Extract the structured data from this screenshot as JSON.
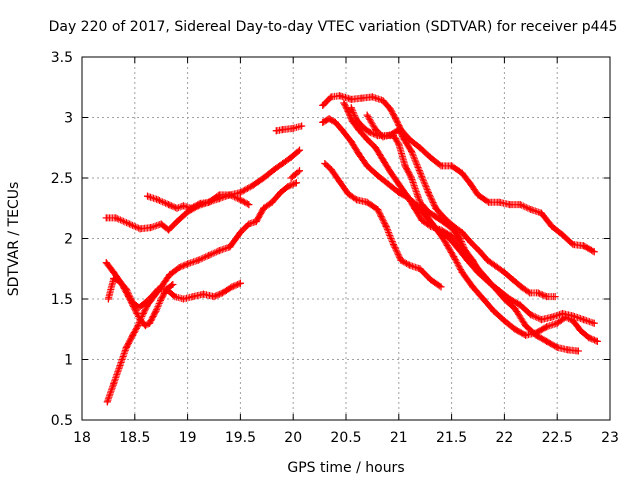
{
  "chart_data": {
    "type": "scatter",
    "title": "Day 220 of 2017, Sidereal Day-to-day VTEC variation (SDTVAR) for receiver p445",
    "xlabel": "GPS time / hours",
    "ylabel": "SDTVAR / TECUs",
    "xlim": [
      18,
      23
    ],
    "ylim": [
      0.5,
      3.5
    ],
    "grid": true,
    "legend": "none",
    "marker": "plus",
    "x_ticks": [
      18,
      18.5,
      19,
      19.5,
      20,
      20.5,
      21,
      21.5,
      22,
      22.5,
      23
    ],
    "x_tick_labels": [
      "18",
      "18.5",
      "19",
      "19.5",
      "20",
      "20.5",
      "21",
      "21.5",
      "22",
      "22.5",
      "23"
    ],
    "y_ticks": [
      0.5,
      1,
      1.5,
      2,
      2.5,
      3,
      3.5
    ],
    "y_tick_labels": [
      "0.5",
      "1",
      "1.5",
      "2",
      "2.5",
      "3",
      "3.5"
    ],
    "colors": {
      "marker": "#ff0000",
      "grid": "#a0a0a0",
      "axis": "#000000"
    },
    "series": [
      {
        "name": "trace-1",
        "points": [
          [
            18.23,
            2.17
          ],
          [
            18.32,
            2.17
          ],
          [
            18.45,
            2.12
          ],
          [
            18.55,
            2.08
          ],
          [
            18.65,
            2.09
          ],
          [
            18.75,
            2.12
          ],
          [
            18.82,
            2.07
          ],
          [
            18.9,
            2.14
          ],
          [
            19.0,
            2.22
          ],
          [
            19.1,
            2.27
          ],
          [
            19.2,
            2.3
          ],
          [
            19.3,
            2.36
          ],
          [
            19.4,
            2.36
          ],
          [
            19.5,
            2.32
          ],
          [
            19.58,
            2.28
          ]
        ]
      },
      {
        "name": "trace-2",
        "points": [
          [
            18.62,
            2.35
          ],
          [
            18.72,
            2.32
          ],
          [
            18.82,
            2.28
          ],
          [
            18.9,
            2.25
          ],
          [
            18.96,
            2.27
          ],
          [
            19.03,
            2.25
          ],
          [
            19.12,
            2.29
          ],
          [
            19.2,
            2.3
          ],
          [
            19.3,
            2.33
          ],
          [
            19.4,
            2.36
          ],
          [
            19.5,
            2.38
          ],
          [
            19.62,
            2.44
          ],
          [
            19.72,
            2.5
          ],
          [
            19.82,
            2.57
          ],
          [
            19.9,
            2.62
          ],
          [
            19.98,
            2.67
          ],
          [
            20.06,
            2.73
          ]
        ]
      },
      {
        "name": "trace-3",
        "points": [
          [
            18.24,
            0.65
          ],
          [
            18.3,
            0.8
          ],
          [
            18.36,
            0.95
          ],
          [
            18.42,
            1.1
          ],
          [
            18.48,
            1.2
          ],
          [
            18.53,
            1.28
          ],
          [
            18.58,
            1.38
          ],
          [
            18.62,
            1.45
          ],
          [
            18.68,
            1.52
          ],
          [
            18.75,
            1.6
          ],
          [
            18.83,
            1.7
          ],
          [
            18.92,
            1.76
          ],
          [
            19.0,
            1.79
          ],
          [
            19.1,
            1.82
          ],
          [
            19.2,
            1.86
          ],
          [
            19.3,
            1.9
          ],
          [
            19.4,
            1.93
          ],
          [
            19.5,
            2.05
          ],
          [
            19.58,
            2.12
          ],
          [
            19.65,
            2.14
          ],
          [
            19.72,
            2.25
          ],
          [
            19.8,
            2.3
          ],
          [
            19.88,
            2.38
          ],
          [
            19.95,
            2.43
          ],
          [
            20.03,
            2.46
          ]
        ]
      },
      {
        "name": "trace-4",
        "points": [
          [
            18.23,
            1.8
          ],
          [
            18.3,
            1.72
          ],
          [
            18.38,
            1.62
          ],
          [
            18.44,
            1.52
          ],
          [
            18.48,
            1.45
          ],
          [
            18.52,
            1.38
          ],
          [
            18.55,
            1.33
          ],
          [
            18.6,
            1.28
          ],
          [
            18.64,
            1.3
          ],
          [
            18.7,
            1.4
          ],
          [
            18.75,
            1.5
          ],
          [
            18.8,
            1.58
          ],
          [
            18.86,
            1.62
          ]
        ]
      },
      {
        "name": "trace-5",
        "points": [
          [
            18.25,
            1.5
          ],
          [
            18.3,
            1.67
          ],
          [
            18.35,
            1.65
          ],
          [
            18.42,
            1.58
          ],
          [
            18.48,
            1.47
          ],
          [
            18.54,
            1.43
          ],
          [
            18.6,
            1.47
          ],
          [
            18.66,
            1.52
          ],
          [
            18.72,
            1.58
          ],
          [
            18.8,
            1.58
          ],
          [
            18.88,
            1.52
          ],
          [
            18.96,
            1.5
          ],
          [
            19.05,
            1.52
          ],
          [
            19.15,
            1.54
          ],
          [
            19.25,
            1.52
          ],
          [
            19.33,
            1.55
          ],
          [
            19.42,
            1.6
          ],
          [
            19.5,
            1.63
          ]
        ]
      },
      {
        "name": "trace-6",
        "points": [
          [
            19.98,
            2.5
          ],
          [
            20.02,
            2.53
          ],
          [
            20.06,
            2.56
          ]
        ]
      },
      {
        "name": "trace-7",
        "points": [
          [
            19.84,
            2.89
          ],
          [
            19.9,
            2.9
          ],
          [
            20.0,
            2.91
          ],
          [
            20.08,
            2.93
          ]
        ]
      },
      {
        "name": "trace-8",
        "points": [
          [
            20.28,
            3.1
          ],
          [
            20.36,
            3.17
          ],
          [
            20.44,
            3.18
          ],
          [
            20.55,
            3.15
          ],
          [
            20.65,
            3.16
          ],
          [
            20.75,
            3.17
          ],
          [
            20.85,
            3.14
          ],
          [
            20.92,
            3.07
          ],
          [
            20.97,
            2.99
          ],
          [
            21.02,
            2.9
          ],
          [
            21.1,
            2.82
          ],
          [
            21.2,
            2.75
          ],
          [
            21.3,
            2.67
          ],
          [
            21.4,
            2.6
          ],
          [
            21.5,
            2.6
          ],
          [
            21.6,
            2.54
          ],
          [
            21.68,
            2.45
          ],
          [
            21.75,
            2.36
          ],
          [
            21.85,
            2.3
          ],
          [
            21.95,
            2.3
          ],
          [
            22.05,
            2.28
          ],
          [
            22.15,
            2.28
          ],
          [
            22.25,
            2.24
          ],
          [
            22.35,
            2.21
          ],
          [
            22.45,
            2.1
          ],
          [
            22.55,
            2.03
          ],
          [
            22.65,
            1.95
          ],
          [
            22.75,
            1.94
          ],
          [
            22.85,
            1.89
          ]
        ]
      },
      {
        "name": "trace-9",
        "points": [
          [
            20.28,
            2.96
          ],
          [
            20.34,
            2.99
          ],
          [
            20.4,
            2.96
          ],
          [
            20.46,
            2.9
          ],
          [
            20.55,
            2.8
          ],
          [
            20.62,
            2.7
          ],
          [
            20.7,
            2.6
          ],
          [
            20.8,
            2.52
          ],
          [
            20.9,
            2.45
          ],
          [
            21.0,
            2.38
          ],
          [
            21.1,
            2.33
          ],
          [
            21.2,
            2.25
          ],
          [
            21.28,
            2.16
          ],
          [
            21.35,
            2.08
          ],
          [
            21.45,
            2.03
          ],
          [
            21.55,
            1.93
          ],
          [
            21.65,
            1.82
          ],
          [
            21.75,
            1.72
          ],
          [
            21.85,
            1.64
          ],
          [
            21.95,
            1.57
          ],
          [
            22.05,
            1.5
          ],
          [
            22.15,
            1.45
          ],
          [
            22.25,
            1.37
          ],
          [
            22.35,
            1.33
          ],
          [
            22.45,
            1.35
          ],
          [
            22.55,
            1.38
          ],
          [
            22.65,
            1.36
          ],
          [
            22.75,
            1.33
          ],
          [
            22.85,
            1.3
          ]
        ]
      },
      {
        "name": "trace-10",
        "points": [
          [
            20.3,
            2.62
          ],
          [
            20.36,
            2.57
          ],
          [
            20.44,
            2.47
          ],
          [
            20.52,
            2.37
          ],
          [
            20.6,
            2.32
          ],
          [
            20.7,
            2.3
          ],
          [
            20.8,
            2.24
          ],
          [
            20.88,
            2.1
          ],
          [
            20.95,
            1.95
          ],
          [
            21.02,
            1.82
          ],
          [
            21.1,
            1.78
          ],
          [
            21.2,
            1.75
          ],
          [
            21.3,
            1.66
          ],
          [
            21.4,
            1.6
          ]
        ]
      },
      {
        "name": "trace-11",
        "points": [
          [
            20.48,
            3.12
          ],
          [
            20.52,
            3.05
          ],
          [
            20.56,
            2.97
          ],
          [
            20.62,
            2.9
          ],
          [
            20.7,
            2.82
          ],
          [
            20.78,
            2.75
          ],
          [
            20.85,
            2.65
          ],
          [
            20.92,
            2.55
          ],
          [
            21.0,
            2.45
          ],
          [
            21.08,
            2.35
          ],
          [
            21.15,
            2.25
          ],
          [
            21.22,
            2.15
          ],
          [
            21.3,
            2.1
          ],
          [
            21.4,
            2.07
          ],
          [
            21.5,
            2.02
          ],
          [
            21.58,
            1.95
          ],
          [
            21.66,
            1.85
          ],
          [
            21.74,
            1.76
          ],
          [
            21.82,
            1.68
          ],
          [
            21.9,
            1.6
          ],
          [
            22.0,
            1.5
          ],
          [
            22.1,
            1.42
          ],
          [
            22.2,
            1.28
          ],
          [
            22.3,
            1.2
          ],
          [
            22.4,
            1.15
          ],
          [
            22.5,
            1.1
          ],
          [
            22.6,
            1.08
          ],
          [
            22.7,
            1.07
          ]
        ]
      },
      {
        "name": "trace-12",
        "points": [
          [
            20.55,
            3.08
          ],
          [
            20.6,
            2.98
          ],
          [
            20.66,
            2.92
          ],
          [
            20.72,
            2.88
          ],
          [
            20.8,
            2.85
          ],
          [
            20.88,
            2.85
          ],
          [
            20.95,
            2.85
          ],
          [
            21.0,
            2.78
          ],
          [
            21.06,
            2.6
          ],
          [
            21.12,
            2.5
          ],
          [
            21.18,
            2.35
          ],
          [
            21.25,
            2.2
          ],
          [
            21.32,
            2.12
          ],
          [
            21.42,
            2.0
          ],
          [
            21.52,
            1.85
          ],
          [
            21.6,
            1.72
          ],
          [
            21.7,
            1.6
          ],
          [
            21.8,
            1.5
          ],
          [
            21.9,
            1.4
          ],
          [
            22.0,
            1.32
          ],
          [
            22.1,
            1.25
          ],
          [
            22.2,
            1.2
          ],
          [
            22.3,
            1.22
          ],
          [
            22.4,
            1.27
          ],
          [
            22.5,
            1.3
          ],
          [
            22.58,
            1.35
          ],
          [
            22.65,
            1.32
          ],
          [
            22.72,
            1.24
          ],
          [
            22.8,
            1.18
          ],
          [
            22.88,
            1.15
          ]
        ]
      },
      {
        "name": "trace-13",
        "points": [
          [
            20.7,
            3.02
          ],
          [
            20.78,
            2.9
          ],
          [
            20.85,
            2.84
          ],
          [
            20.93,
            2.86
          ],
          [
            21.0,
            2.9
          ],
          [
            21.05,
            2.82
          ],
          [
            21.12,
            2.72
          ],
          [
            21.2,
            2.55
          ],
          [
            21.28,
            2.38
          ],
          [
            21.35,
            2.25
          ],
          [
            21.43,
            2.17
          ],
          [
            21.52,
            2.1
          ],
          [
            21.6,
            2.05
          ],
          [
            21.68,
            1.97
          ],
          [
            21.76,
            1.9
          ],
          [
            21.84,
            1.82
          ],
          [
            21.92,
            1.77
          ],
          [
            22.0,
            1.72
          ],
          [
            22.08,
            1.66
          ],
          [
            22.16,
            1.6
          ],
          [
            22.24,
            1.55
          ],
          [
            22.32,
            1.55
          ],
          [
            22.4,
            1.52
          ],
          [
            22.48,
            1.52
          ]
        ]
      },
      {
        "name": "trace-14",
        "points": [
          [
            21.22,
            2.28
          ],
          [
            21.28,
            2.22
          ],
          [
            21.35,
            2.18
          ],
          [
            21.45,
            2.12
          ],
          [
            21.52,
            2.07
          ],
          [
            21.58,
            2.0
          ],
          [
            21.63,
            1.9
          ],
          [
            21.7,
            1.82
          ],
          [
            21.76,
            1.73
          ]
        ]
      }
    ]
  }
}
